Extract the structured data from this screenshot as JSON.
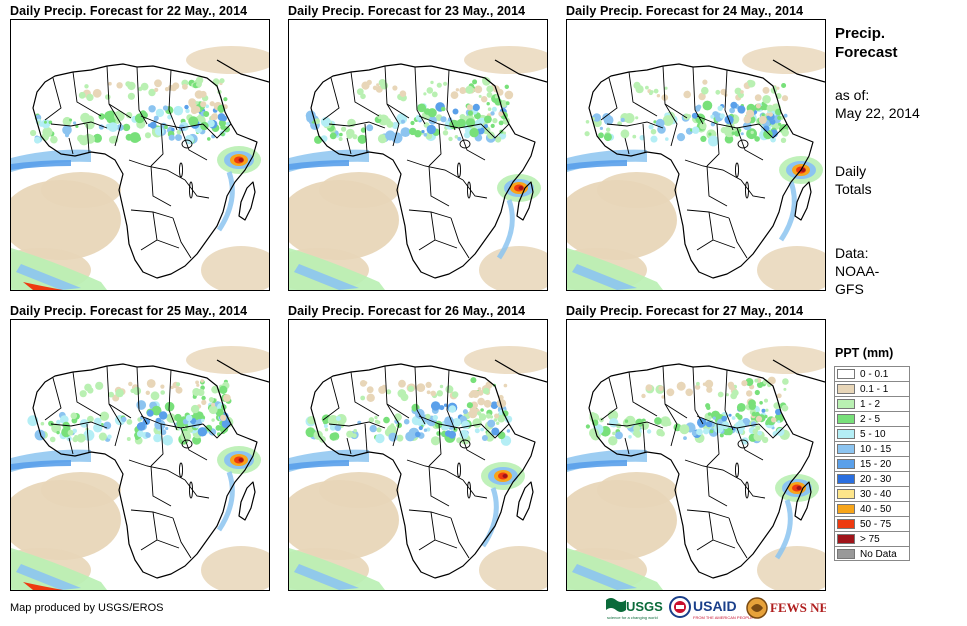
{
  "panels": [
    {
      "title": "Daily Precip. Forecast for 22 May., 2014",
      "storm": "east-coast"
    },
    {
      "title": "Daily Precip. Forecast for 23 May., 2014",
      "storm": "mozambique"
    },
    {
      "title": "Daily Precip. Forecast for 24 May., 2014",
      "storm": "east-ocean"
    },
    {
      "title": "Daily Precip. Forecast for 25 May., 2014",
      "storm": "east-coast"
    },
    {
      "title": "Daily Precip. Forecast for 26 May., 2014",
      "storm": "tanzania"
    },
    {
      "title": "Daily Precip. Forecast for 27 May., 2014",
      "storm": "mozambique"
    }
  ],
  "sidebar": {
    "title_line1": "Precip.",
    "title_line2": "Forecast",
    "as_of_label": "as of:",
    "as_of_date": "May 22, 2014",
    "totals_line1": "Daily",
    "totals_line2": "Totals",
    "data_line1": "Data:",
    "data_line2": "NOAA-",
    "data_line3": "GFS"
  },
  "legend": {
    "title": "PPT (mm)",
    "items": [
      {
        "label": "0 - 0.1",
        "color": "#ffffff"
      },
      {
        "label": "0.1 - 1",
        "color": "#e8d6b8"
      },
      {
        "label": "1 - 2",
        "color": "#b9f0b2"
      },
      {
        "label": "2 - 5",
        "color": "#78e07a"
      },
      {
        "label": "5 - 10",
        "color": "#b4eef5"
      },
      {
        "label": "10 - 15",
        "color": "#8cc4f0"
      },
      {
        "label": "15 - 20",
        "color": "#5aa0ea"
      },
      {
        "label": "20 - 30",
        "color": "#2a6fe0"
      },
      {
        "label": "30 - 40",
        "color": "#fde58a"
      },
      {
        "label": "40 - 50",
        "color": "#f7a51a"
      },
      {
        "label": "50 - 75",
        "color": "#ee3a10"
      },
      {
        "label": "> 75",
        "color": "#a0141a"
      },
      {
        "label": "No Data",
        "color": "#999999"
      }
    ]
  },
  "footer": {
    "credit": "Map produced by USGS/EROS"
  },
  "logos": {
    "usgs": "USGS",
    "usgs_tagline": "science for a changing world",
    "usaid": "USAID",
    "usaid_tagline": "FROM THE AMERICAN PEOPLE",
    "fewsnet": "FEWS NET"
  }
}
